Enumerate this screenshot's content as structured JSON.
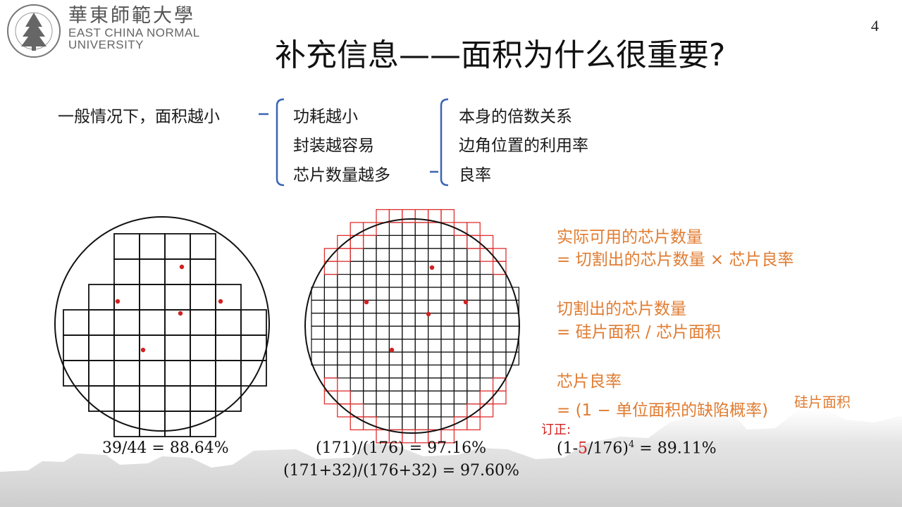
{
  "header": {
    "logo_cn": "華東師範大學",
    "logo_en_line1": "EAST CHINA NORMAL",
    "logo_en_line2": "UNIVERSITY",
    "seal_text": "EAST CHINA NORMAL UNIVERSITY",
    "page_number": "4",
    "title": "补充信息——面积为什么很重要?"
  },
  "outline": {
    "root": "一般情况下，面积越小",
    "level1": [
      "功耗越小",
      "封装越容易",
      "芯片数量越多"
    ],
    "level2": [
      "本身的倍数关系",
      "边角位置的利用率",
      "良率"
    ]
  },
  "notes": {
    "usable_title": "实际可用的芯片数量",
    "usable_formula": "= 切割出的芯片数量 × 芯片良率",
    "cut_title": "切割出的芯片数量",
    "cut_formula": "= 硅片面积 / 芯片面积",
    "yield_title": "芯片良率",
    "yield_formula": "= (1 − 单位面积的缺陷概率)",
    "yield_exponent": "硅片面积",
    "correction_label": "订正:"
  },
  "formulas": {
    "wafer1": "39/44 = 88.64%",
    "wafer2_line1": "(171)/(176) = 97.16%",
    "wafer2_line2": "(171+32)/(176+32) = 97.60%",
    "corr_prefix": "(1-",
    "corr_red": "5",
    "corr_mid": "/176)",
    "corr_sup": "4",
    "corr_suffix": " = 89.11%"
  },
  "colors": {
    "accent_orange": "#e07c32",
    "bracket_blue": "#3a64b4",
    "defect_red": "#d32020",
    "edge_die_red": "#e03030"
  }
}
